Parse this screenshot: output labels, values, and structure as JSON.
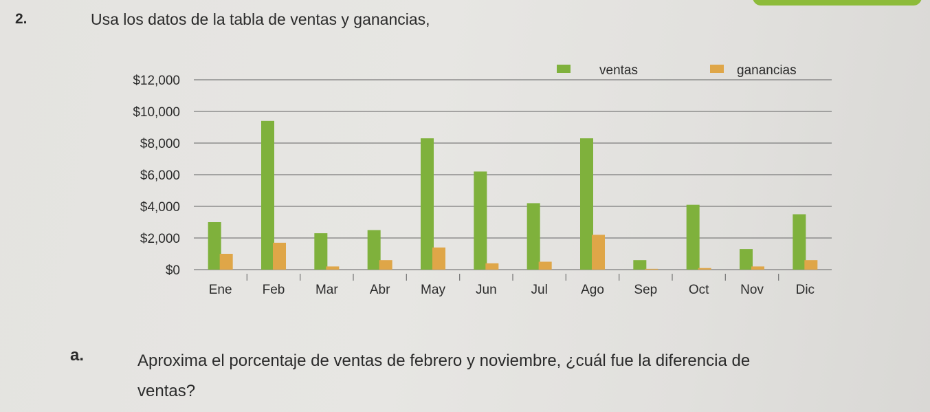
{
  "question": {
    "number": "2.",
    "text": "Usa los datos de la tabla de ventas y ganancias,"
  },
  "subquestion": {
    "letter": "a.",
    "line1": "Aproxima el porcentaje de ventas de febrero y noviembre, ¿cuál fue la diferencia de",
    "line2": "ventas?"
  },
  "chart_data": {
    "type": "bar",
    "categories": [
      "Ene",
      "Feb",
      "Mar",
      "Abr",
      "May",
      "Jun",
      "Jul",
      "Ago",
      "Sep",
      "Oct",
      "Nov",
      "Dic"
    ],
    "y_tick_labels": [
      "$0",
      "$2,000",
      "$4,000",
      "$6,000",
      "$8,000",
      "$10,000",
      "$12,000"
    ],
    "y_tick_values": [
      0,
      2000,
      4000,
      6000,
      8000,
      10000,
      12000
    ],
    "ylim": [
      0,
      12000
    ],
    "series": [
      {
        "name": "ventas",
        "color": "#7fb13c",
        "values": [
          3000,
          9400,
          2300,
          2500,
          8300,
          6200,
          4200,
          8300,
          600,
          4100,
          1300,
          3500
        ]
      },
      {
        "name": "ganancias",
        "color": "#dfa648",
        "values": [
          1000,
          1700,
          200,
          600,
          1400,
          400,
          500,
          2200,
          50,
          100,
          200,
          600
        ]
      }
    ],
    "legend_position": "top-right",
    "grid": true
  }
}
